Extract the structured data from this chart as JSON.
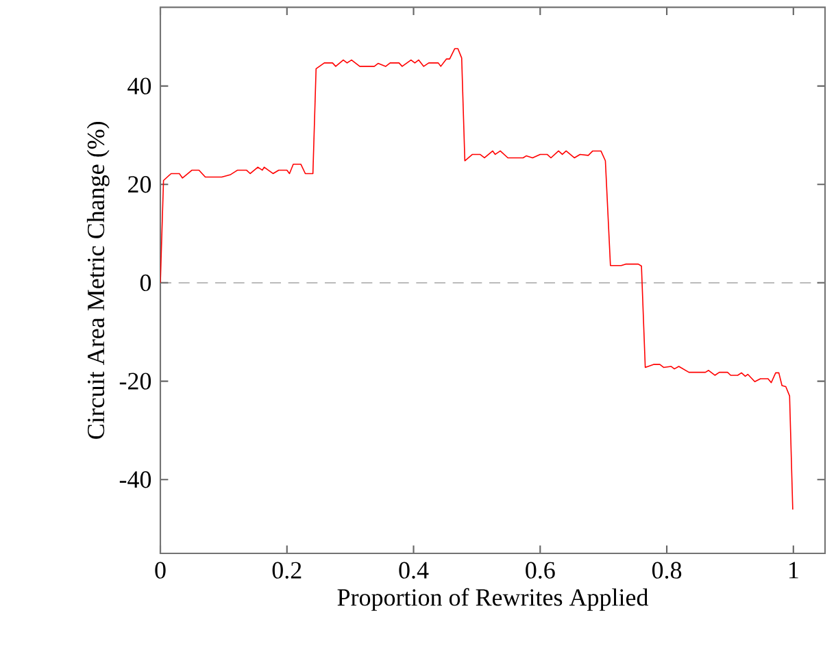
{
  "chart_data": {
    "type": "line",
    "xlabel": "Proportion of Rewrites Applied",
    "ylabel": "Circuit Area Metric Change (%)",
    "x": [
      0,
      0.005,
      0.017,
      0.03,
      0.035,
      0.05,
      0.061,
      0.071,
      0.097,
      0.111,
      0.122,
      0.136,
      0.142,
      0.154,
      0.161,
      0.164,
      0.178,
      0.187,
      0.2,
      0.204,
      0.21,
      0.222,
      0.229,
      0.241,
      0.246,
      0.259,
      0.272,
      0.277,
      0.289,
      0.295,
      0.302,
      0.315,
      0.338,
      0.344,
      0.356,
      0.363,
      0.377,
      0.382,
      0.396,
      0.402,
      0.408,
      0.416,
      0.424,
      0.439,
      0.443,
      0.452,
      0.457,
      0.465,
      0.47,
      0.476,
      0.481,
      0.493,
      0.505,
      0.512,
      0.525,
      0.529,
      0.537,
      0.549,
      0.573,
      0.578,
      0.588,
      0.6,
      0.611,
      0.617,
      0.629,
      0.635,
      0.641,
      0.654,
      0.663,
      0.676,
      0.683,
      0.696,
      0.703,
      0.711,
      0.728,
      0.735,
      0.755,
      0.76,
      0.766,
      0.779,
      0.789,
      0.795,
      0.807,
      0.812,
      0.819,
      0.835,
      0.861,
      0.866,
      0.876,
      0.883,
      0.896,
      0.901,
      0.912,
      0.918,
      0.924,
      0.928,
      0.939,
      0.948,
      0.96,
      0.965,
      0.972,
      0.977,
      0.982,
      0.988,
      0.994,
      0.999
    ],
    "series": [
      {
        "color": "#ff0000",
        "values": [
          0,
          20.8,
          22.2,
          22.2,
          21.3,
          22.9,
          22.9,
          21.5,
          21.5,
          22,
          22.9,
          22.9,
          22.2,
          23.5,
          22.9,
          23.5,
          22.2,
          22.9,
          22.9,
          22.2,
          24.1,
          24.1,
          22.2,
          22.2,
          43.5,
          44.7,
          44.7,
          44,
          45.3,
          44.7,
          45.3,
          44,
          44,
          44.6,
          44,
          44.7,
          44.7,
          44,
          45.3,
          44.7,
          45.3,
          44,
          44.7,
          44.7,
          44,
          45.5,
          45.5,
          47.6,
          47.6,
          45.7,
          24.8,
          26.1,
          26.1,
          25.4,
          26.8,
          26.1,
          26.8,
          25.4,
          25.4,
          25.8,
          25.4,
          26.1,
          26.1,
          25.4,
          26.8,
          26.1,
          26.8,
          25.4,
          26.1,
          25.9,
          26.8,
          26.8,
          24.8,
          3.5,
          3.5,
          3.8,
          3.8,
          3.4,
          -17.2,
          -16.6,
          -16.6,
          -17.2,
          -17,
          -17.5,
          -17,
          -18.2,
          -18.2,
          -17.8,
          -18.8,
          -18.2,
          -18.2,
          -18.8,
          -18.8,
          -18.3,
          -19,
          -18.6,
          -20.1,
          -19.5,
          -19.5,
          -20.3,
          -18.3,
          -18.3,
          -20.9,
          -21.1,
          -23,
          -46.1
        ]
      }
    ],
    "xlim": [
      0,
      1.05
    ],
    "ylim": [
      -55,
      56
    ],
    "xticks": [
      0,
      0.2,
      0.4,
      0.6,
      0.8,
      1
    ],
    "yticks": [
      -40,
      -20,
      0,
      20,
      40
    ],
    "ref_lines": [
      {
        "axis": "y",
        "value": 0,
        "color": "#808080",
        "line_style": "dashed"
      }
    ],
    "line_style": "solid",
    "marker": "none",
    "grid": false
  }
}
